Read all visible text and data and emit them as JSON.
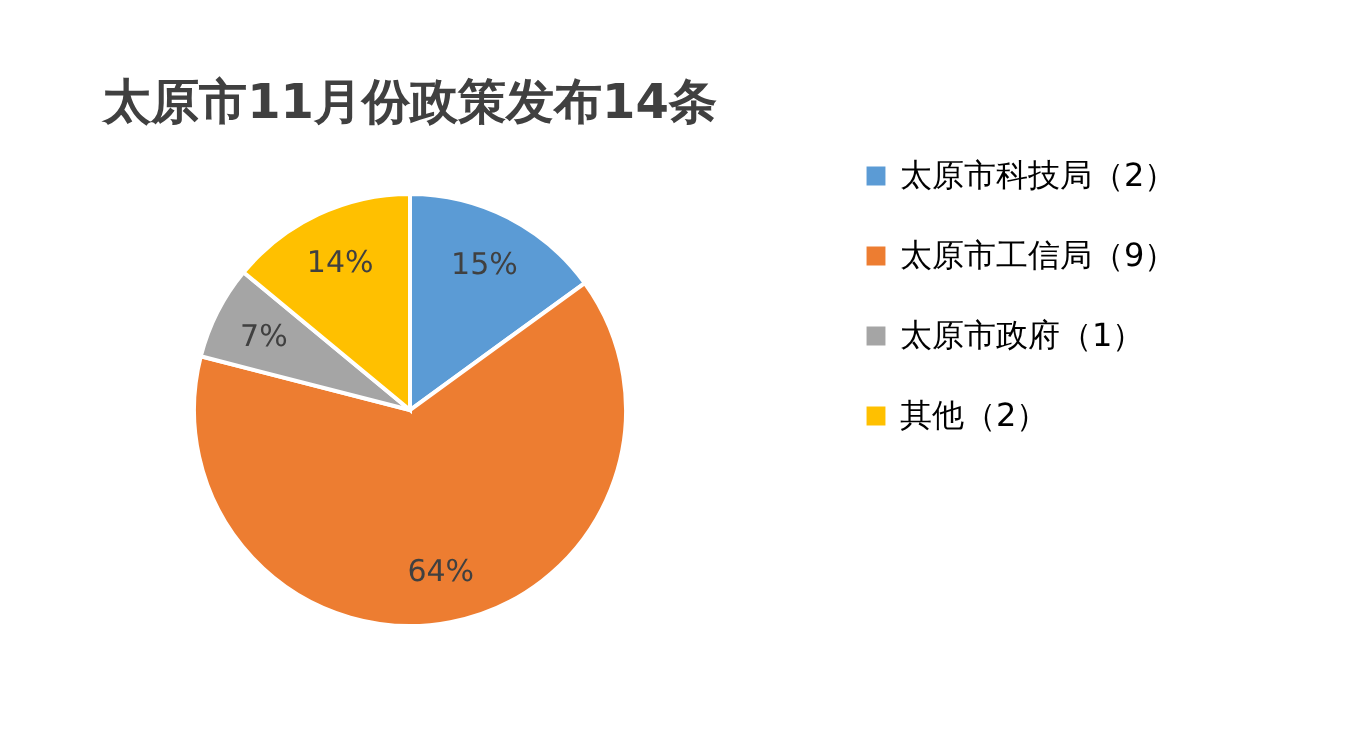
{
  "chart_data": {
    "type": "pie",
    "title": "太原市11月份政策发布14条",
    "categories": [
      "太原市科技局（2）",
      "太原市工信局（9）",
      "太原市政府（1）",
      "其他（2）"
    ],
    "values": [
      15,
      64,
      7,
      14
    ],
    "colors": [
      "#5b9bd5",
      "#ed7d31",
      "#a5a5a5",
      "#ffc000"
    ],
    "value_labels": [
      "15%",
      "64%",
      "7%",
      "14%"
    ],
    "legend": "right"
  }
}
